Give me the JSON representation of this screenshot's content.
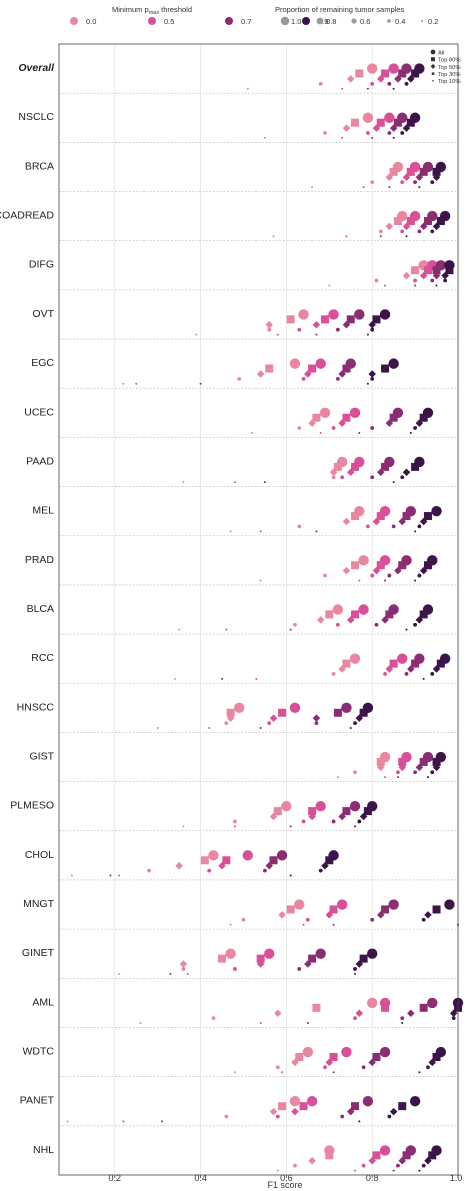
{
  "legend": {
    "threshold_title": "Minimum p",
    "threshold_title_sub": "max",
    "threshold_title_rest": " threshold",
    "threshold_items": [
      {
        "label": "0.0",
        "color": "#e8879f"
      },
      {
        "label": "0.5",
        "color": "#d94f98"
      },
      {
        "label": "0.7",
        "color": "#8b2d73"
      },
      {
        "label": "0.9",
        "color": "#3b1448"
      }
    ],
    "proportion_title": "Proportion of remaining tumor samples",
    "proportion_items": [
      "1.0",
      "0.8",
      "0.6",
      "0.4",
      "0.2"
    ],
    "shape_items": [
      "All",
      "Top 80%",
      "Top 50%",
      "Top 30%",
      "Top 10%"
    ]
  },
  "chart_data": {
    "type": "scatter",
    "xlabel": "F1 score",
    "xlim": [
      0.07,
      1.0
    ],
    "xticks": [
      "0.2",
      "0.4",
      "0.6",
      "0.8",
      "1.0"
    ],
    "grid": true,
    "legend_placement": "top",
    "series": [
      {
        "name": "0.0",
        "color": "#e8879f"
      },
      {
        "name": "0.5",
        "color": "#d94f98"
      },
      {
        "name": "0.7",
        "color": "#8b2d73"
      },
      {
        "name": "0.9",
        "color": "#3b1448"
      }
    ],
    "rows": [
      {
        "label": "Overall",
        "bold": true,
        "values": [
          [
            0.8,
            0.77,
            0.75,
            0.68,
            0.51
          ],
          [
            0.85,
            0.83,
            0.82,
            0.8,
            0.73
          ],
          [
            0.88,
            0.87,
            0.86,
            0.84,
            0.79
          ],
          [
            0.91,
            0.9,
            0.89,
            0.88,
            0.85
          ]
        ]
      },
      {
        "label": "NSCLC",
        "values": [
          [
            0.79,
            0.76,
            0.74,
            0.69,
            0.55
          ],
          [
            0.84,
            0.82,
            0.81,
            0.79,
            0.73
          ],
          [
            0.87,
            0.86,
            0.85,
            0.84,
            0.8
          ],
          [
            0.9,
            0.89,
            0.88,
            0.87,
            0.85
          ]
        ]
      },
      {
        "label": "BRCA",
        "values": [
          [
            0.86,
            0.85,
            0.84,
            0.8,
            0.66
          ],
          [
            0.9,
            0.89,
            0.88,
            0.87,
            0.78
          ],
          [
            0.93,
            0.92,
            0.91,
            0.9,
            0.84
          ],
          [
            0.96,
            0.95,
            0.95,
            0.94,
            0.91
          ]
        ]
      },
      {
        "label": "COADREAD",
        "values": [
          [
            0.87,
            0.86,
            0.84,
            0.82,
            0.57
          ],
          [
            0.9,
            0.89,
            0.88,
            0.87,
            0.74
          ],
          [
            0.94,
            0.93,
            0.92,
            0.91,
            0.82
          ],
          [
            0.97,
            0.96,
            0.95,
            0.94,
            0.88
          ]
        ]
      },
      {
        "label": "DIFG",
        "values": [
          [
            0.92,
            0.9,
            0.88,
            0.81,
            0.7
          ],
          [
            0.94,
            0.93,
            0.92,
            0.9,
            0.83
          ],
          [
            0.96,
            0.95,
            0.95,
            0.94,
            0.9
          ],
          [
            0.98,
            0.98,
            0.97,
            0.97,
            0.95
          ]
        ]
      },
      {
        "label": "OVT",
        "values": [
          [
            0.64,
            0.61,
            0.56,
            0.56,
            0.39
          ],
          [
            0.71,
            0.69,
            0.67,
            0.63,
            0.58
          ],
          [
            0.77,
            0.75,
            0.74,
            0.72,
            0.67
          ],
          [
            0.83,
            0.81,
            0.8,
            0.8,
            0.79
          ]
        ]
      },
      {
        "label": "EGC",
        "values": [
          [
            0.62,
            0.56,
            0.54,
            0.49,
            0.22
          ],
          [
            0.68,
            0.66,
            0.65,
            0.64,
            0.25
          ],
          [
            0.75,
            0.74,
            0.73,
            0.72,
            0.4
          ],
          [
            0.85,
            0.83,
            0.8,
            0.8,
            0.79
          ]
        ]
      },
      {
        "label": "UCEC",
        "values": [
          [
            0.69,
            0.67,
            0.66,
            0.63,
            0.52
          ],
          [
            0.76,
            0.74,
            0.73,
            0.71,
            0.68
          ],
          [
            0.86,
            0.85,
            0.84,
            0.8,
            0.77
          ],
          [
            0.93,
            0.92,
            0.91,
            0.9,
            0.89
          ]
        ]
      },
      {
        "label": "PAAD",
        "values": [
          [
            0.73,
            0.72,
            0.71,
            0.71,
            0.36
          ],
          [
            0.77,
            0.76,
            0.75,
            0.73,
            0.48
          ],
          [
            0.84,
            0.83,
            0.82,
            0.8,
            0.55
          ],
          [
            0.91,
            0.9,
            0.88,
            0.87,
            0.85
          ]
        ]
      },
      {
        "label": "MEL",
        "values": [
          [
            0.77,
            0.76,
            0.74,
            0.63,
            0.47
          ],
          [
            0.83,
            0.82,
            0.81,
            0.79,
            0.54
          ],
          [
            0.89,
            0.88,
            0.87,
            0.85,
            0.67
          ],
          [
            0.95,
            0.93,
            0.92,
            0.91,
            0.9
          ]
        ]
      },
      {
        "label": "PRAD",
        "values": [
          [
            0.78,
            0.76,
            0.74,
            0.69,
            0.54
          ],
          [
            0.83,
            0.82,
            0.81,
            0.8,
            0.77
          ],
          [
            0.88,
            0.87,
            0.86,
            0.84,
            0.83
          ],
          [
            0.94,
            0.93,
            0.92,
            0.91,
            0.9
          ]
        ]
      },
      {
        "label": "BLCA",
        "values": [
          [
            0.72,
            0.7,
            0.68,
            0.62,
            0.35
          ],
          [
            0.78,
            0.76,
            0.75,
            0.72,
            0.46
          ],
          [
            0.85,
            0.84,
            0.83,
            0.81,
            0.61
          ],
          [
            0.93,
            0.92,
            0.91,
            0.9,
            0.88
          ]
        ]
      },
      {
        "label": "RCC",
        "values": [
          [
            0.76,
            0.74,
            0.73,
            0.71,
            0.34
          ],
          [
            0.87,
            0.85,
            0.84,
            0.83,
            0.53
          ],
          [
            0.91,
            0.9,
            0.89,
            0.88,
            0.45
          ],
          [
            0.97,
            0.96,
            0.95,
            0.94,
            0.92
          ]
        ]
      },
      {
        "label": "HNSCC",
        "values": [
          [
            0.49,
            0.47,
            0.47,
            0.46,
            0.3
          ],
          [
            0.62,
            0.59,
            0.57,
            0.56,
            0.42
          ],
          [
            0.74,
            0.72,
            0.67,
            0.67,
            0.54
          ],
          [
            0.79,
            0.78,
            0.77,
            0.76,
            0.75
          ]
        ]
      },
      {
        "label": "GIST",
        "values": [
          [
            0.83,
            0.82,
            0.82,
            0.76,
            0.72
          ],
          [
            0.88,
            0.87,
            0.87,
            0.86,
            0.83
          ],
          [
            0.93,
            0.92,
            0.91,
            0.9,
            0.86
          ],
          [
            0.96,
            0.95,
            0.95,
            0.94,
            0.93
          ]
        ]
      },
      {
        "label": "PLMESO",
        "values": [
          [
            0.6,
            0.58,
            0.57,
            0.48,
            0.36
          ],
          [
            0.68,
            0.66,
            0.66,
            0.64,
            0.48
          ],
          [
            0.76,
            0.74,
            0.73,
            0.71,
            0.61
          ],
          [
            0.8,
            0.79,
            0.78,
            0.77,
            0.76
          ]
        ]
      },
      {
        "label": "CHOL",
        "values": [
          [
            0.43,
            0.41,
            0.35,
            0.28,
            0.1
          ],
          [
            0.51,
            0.46,
            0.45,
            0.42,
            0.21
          ],
          [
            0.59,
            0.57,
            0.56,
            0.55,
            0.19
          ],
          [
            0.71,
            0.7,
            0.69,
            0.68,
            0.61
          ]
        ]
      },
      {
        "label": "MNGT",
        "values": [
          [
            0.63,
            0.61,
            0.59,
            0.5,
            0.47
          ],
          [
            0.73,
            0.71,
            0.7,
            0.65,
            0.64
          ],
          [
            0.85,
            0.83,
            0.82,
            0.8,
            0.71
          ],
          [
            0.98,
            0.95,
            0.93,
            0.92,
            1.0
          ]
        ]
      },
      {
        "label": "GINET",
        "values": [
          [
            0.47,
            0.45,
            0.36,
            0.36,
            0.21
          ],
          [
            0.56,
            0.54,
            0.54,
            0.48,
            0.37
          ],
          [
            0.68,
            0.66,
            0.65,
            0.63,
            0.33
          ],
          [
            0.8,
            0.78,
            0.77,
            0.76,
            0.76
          ]
        ]
      },
      {
        "label": "AML",
        "values": [
          [
            0.8,
            0.67,
            0.58,
            0.43,
            0.26
          ],
          [
            0.83,
            0.83,
            0.77,
            0.76,
            0.54
          ],
          [
            0.94,
            0.92,
            0.89,
            0.87,
            0.65
          ],
          [
            1.0,
            1.0,
            0.99,
            0.99,
            0.87
          ]
        ]
      },
      {
        "label": "WDTC",
        "values": [
          [
            0.65,
            0.63,
            0.62,
            0.58,
            0.48
          ],
          [
            0.74,
            0.71,
            0.7,
            0.69,
            0.59
          ],
          [
            0.83,
            0.81,
            0.8,
            0.78,
            0.71
          ],
          [
            0.96,
            0.95,
            0.94,
            0.93,
            0.91
          ]
        ]
      },
      {
        "label": "PANET",
        "values": [
          [
            0.62,
            0.59,
            0.57,
            0.46,
            0.09
          ],
          [
            0.66,
            0.64,
            0.62,
            0.58,
            0.22
          ],
          [
            0.79,
            0.76,
            0.75,
            0.73,
            0.31
          ],
          [
            0.9,
            0.87,
            0.85,
            0.84,
            0.77
          ]
        ]
      },
      {
        "label": "NHL",
        "values": [
          [
            0.7,
            0.7,
            0.66,
            0.62,
            0.58
          ],
          [
            0.83,
            0.81,
            0.8,
            0.78,
            0.76
          ],
          [
            0.89,
            0.88,
            0.87,
            0.86,
            0.85
          ],
          [
            0.95,
            0.94,
            0.93,
            0.92,
            0.91
          ]
        ]
      }
    ]
  }
}
